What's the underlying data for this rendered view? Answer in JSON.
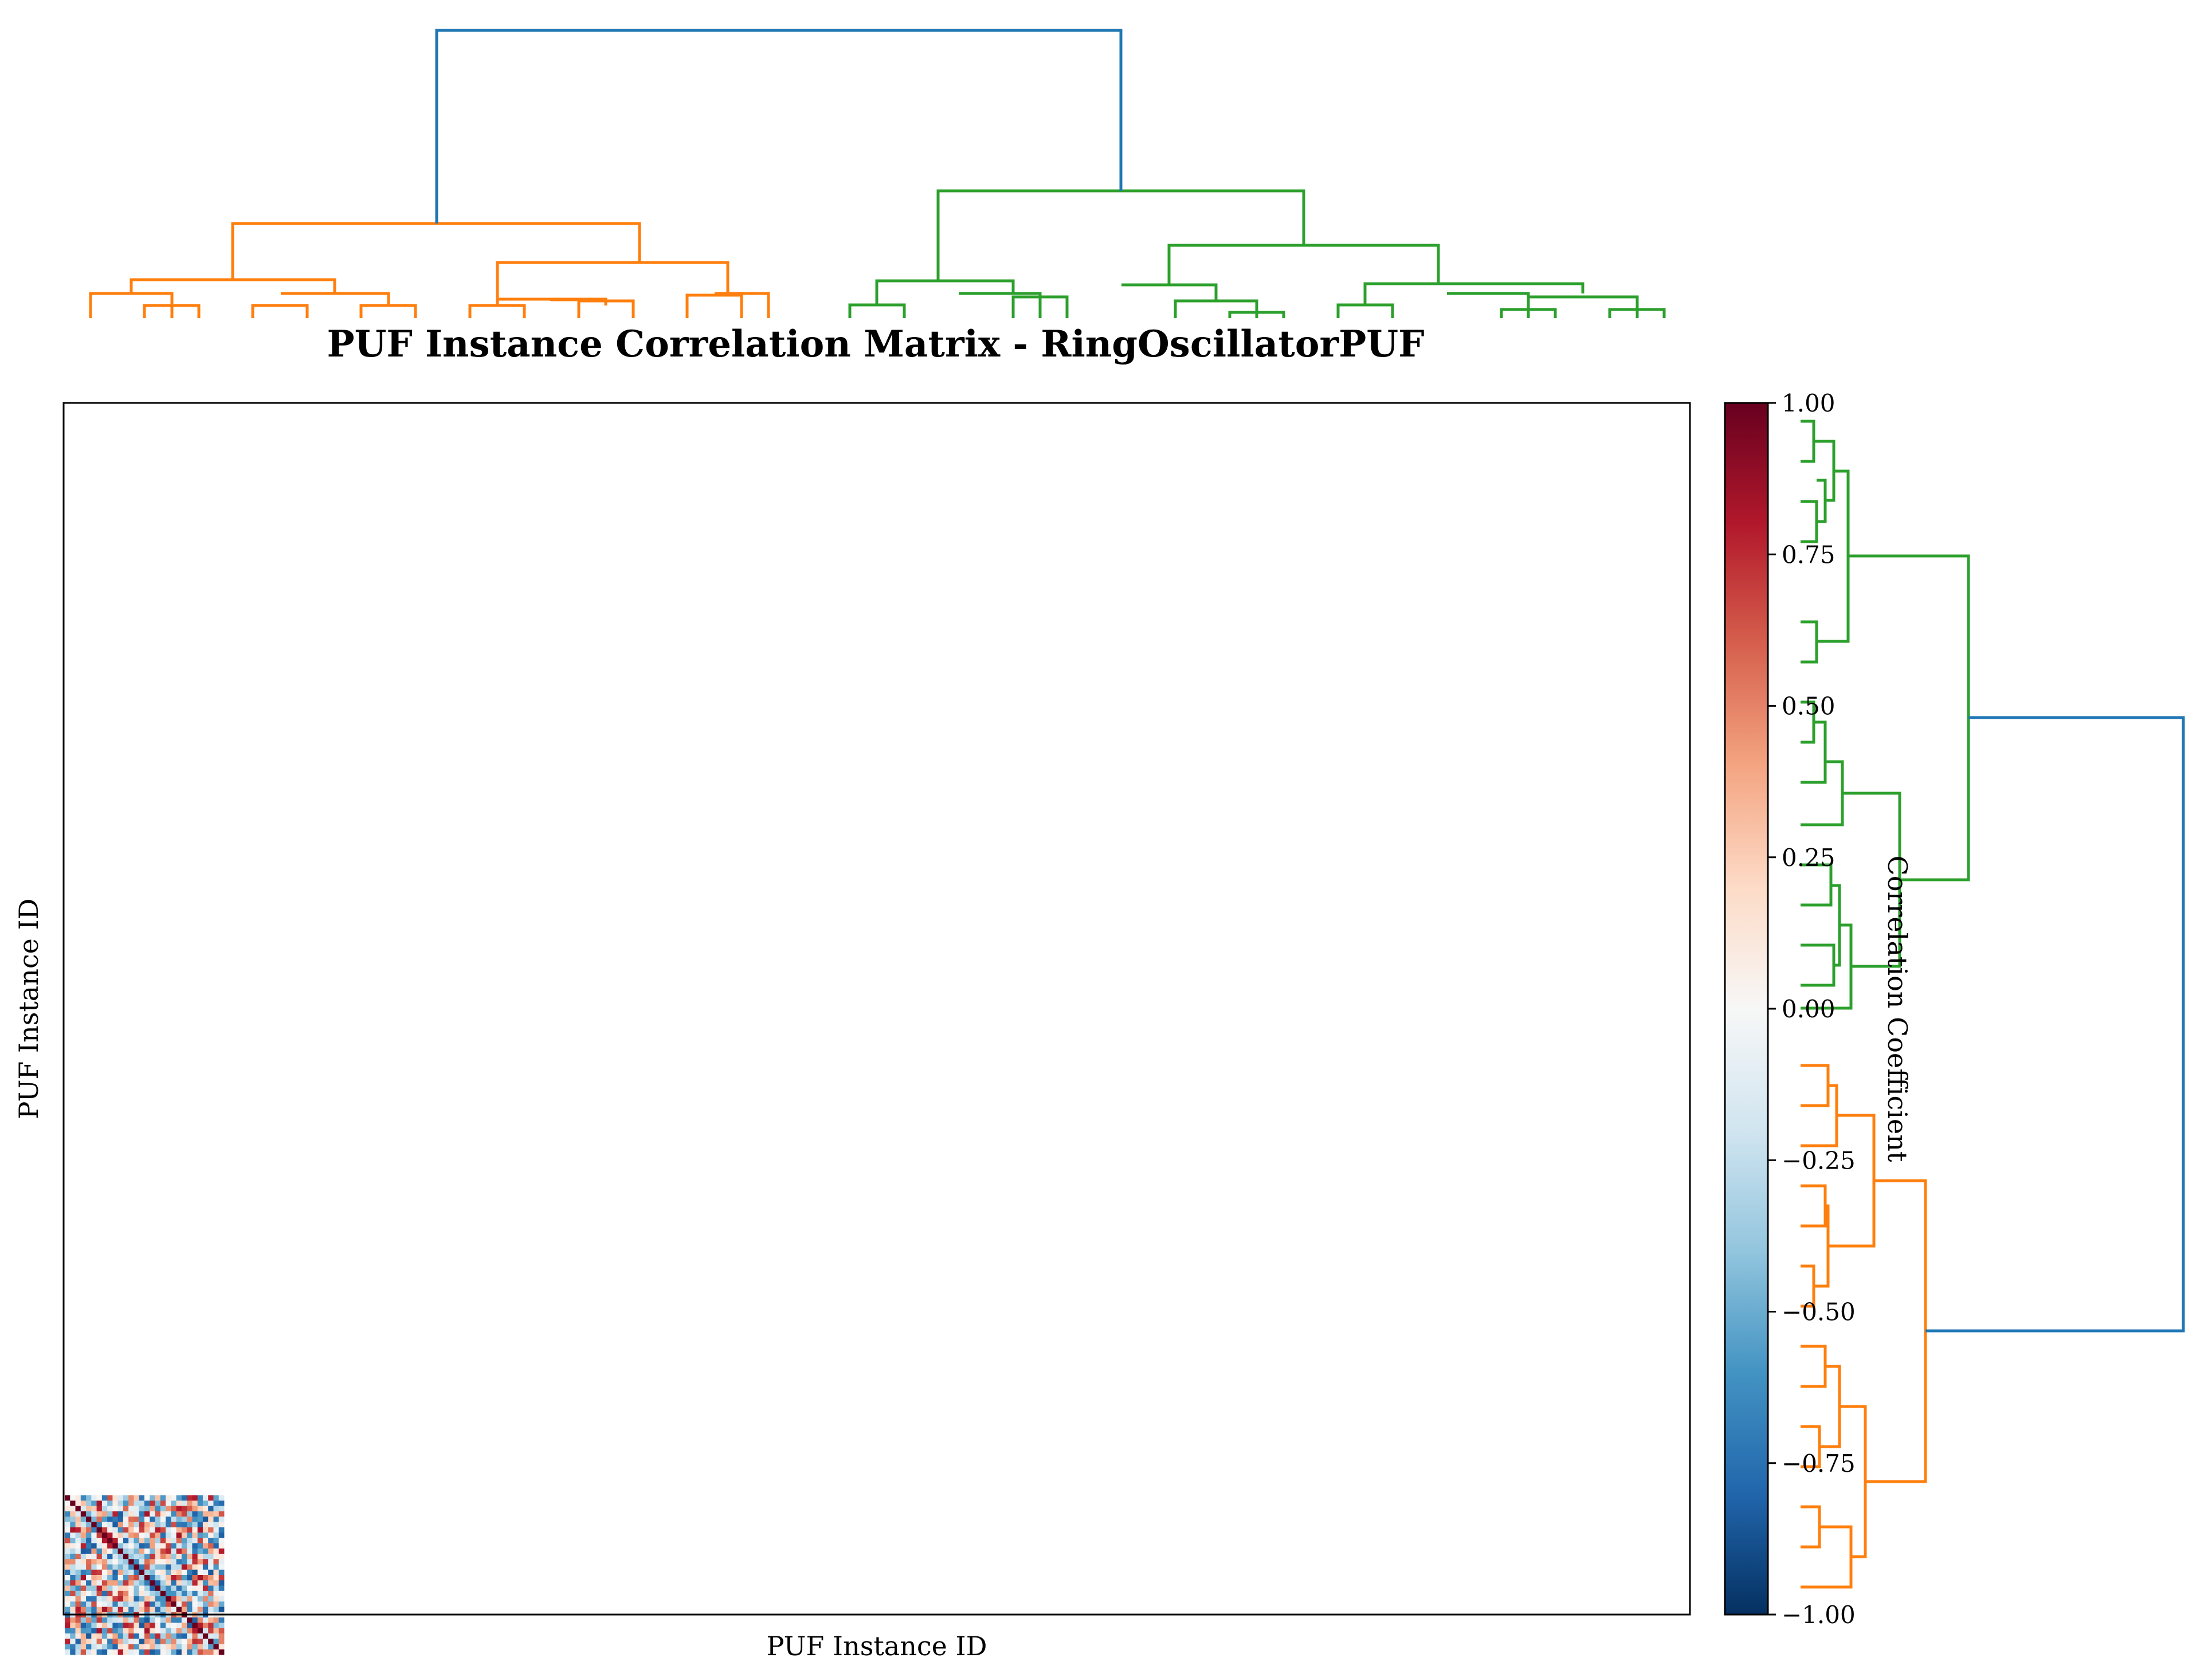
{
  "chart_data": {
    "type": "heatmap",
    "title": "PUF Instance Correlation Matrix - RingOscillatorPUF",
    "xlabel": "PUF Instance ID",
    "ylabel": "PUF Instance ID",
    "colorbar": {
      "label": "Correlation Coefficient",
      "range": [
        -1.0,
        1.0
      ],
      "ticks": [
        "1.00",
        "0.75",
        "0.50",
        "0.25",
        "0.00",
        "−0.25",
        "−0.50",
        "−0.75",
        "−1.00"
      ],
      "tick_values": [
        1.0,
        0.75,
        0.5,
        0.25,
        0.0,
        -0.25,
        -0.5,
        -0.75,
        -1.0
      ],
      "colormap": [
        "#67001f",
        "#b2182b",
        "#d6604d",
        "#f4a582",
        "#fddbc7",
        "#f7f7f7",
        "#d1e5f0",
        "#92c5de",
        "#4393c3",
        "#2166ac",
        "#053061"
      ]
    },
    "dendrogram": {
      "leaves": 30,
      "clusters": [
        {
          "color": "#ff7f0e",
          "leaf_count": 14
        },
        {
          "color": "#2ca02c",
          "leaf_count": 16
        }
      ],
      "link_color": "#1f77b4"
    },
    "matrix_size": 30,
    "diagonal_value": 1.0
  }
}
